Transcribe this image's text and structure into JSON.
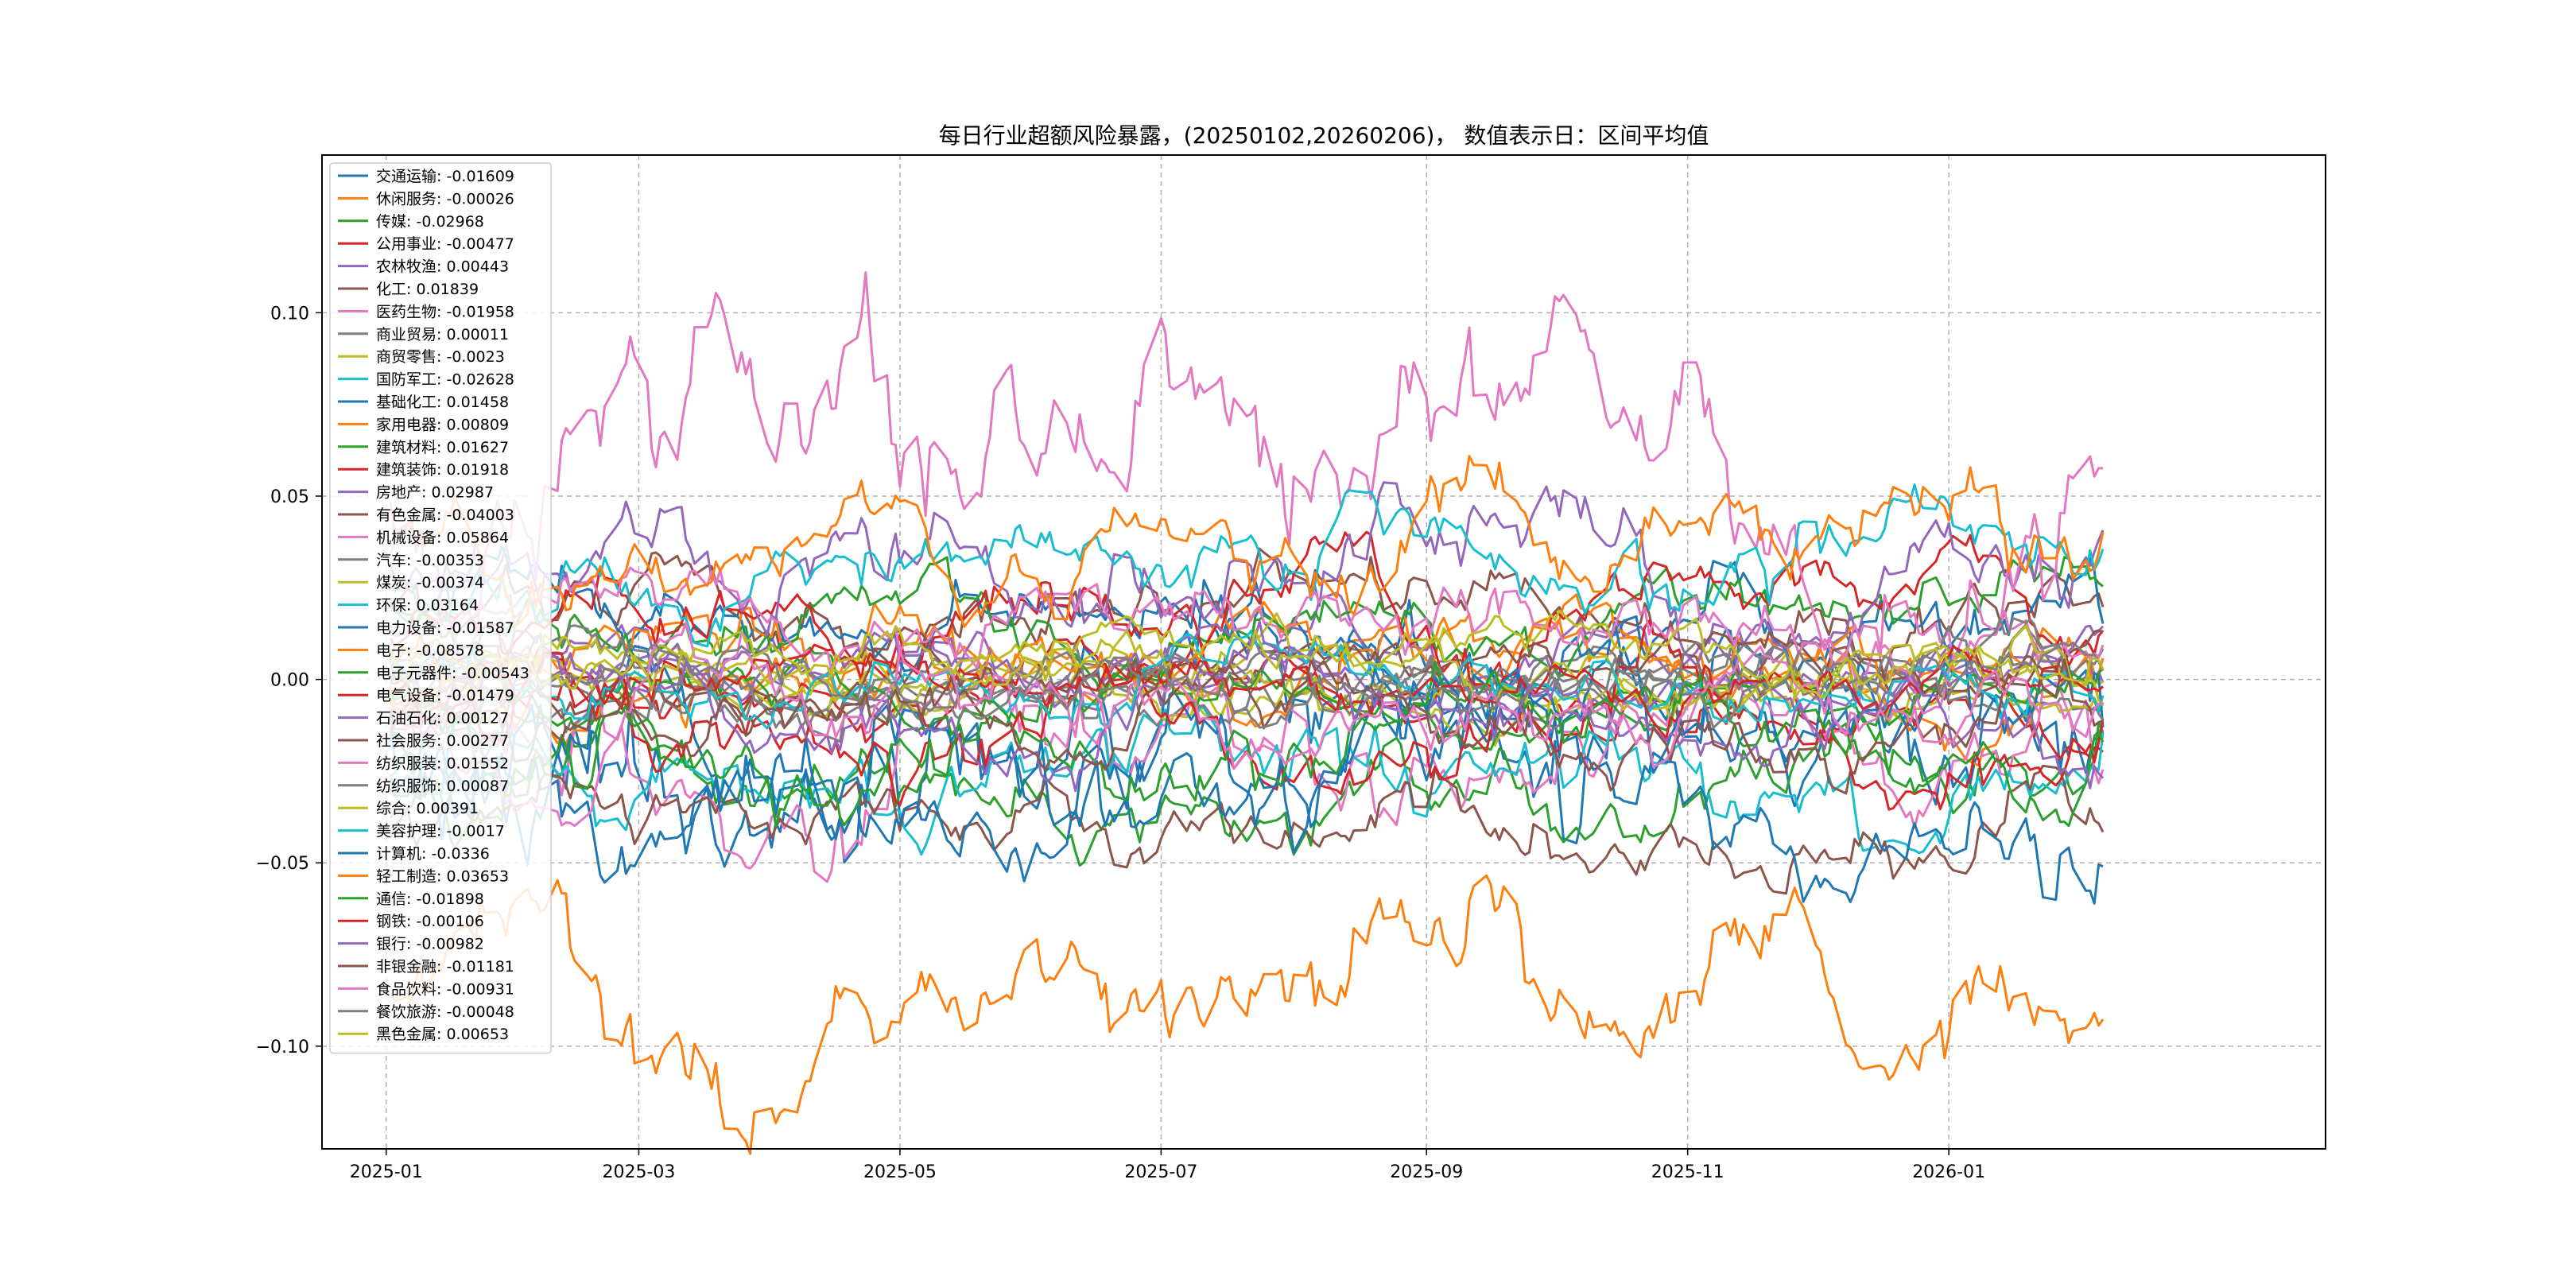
{
  "chart_data": {
    "type": "line",
    "title": "每日行业超额风险暴露，(20250102,20260206)， 数值表示日：区间平均值",
    "xlabel": "",
    "ylabel": "",
    "x_range": [
      "2024-12-17",
      "2026-03-30"
    ],
    "x_start": "2025-01-02",
    "x_end": "2026-02-06",
    "ylim": [
      -0.128,
      0.143
    ],
    "x_ticks": [
      "2025-01",
      "2025-03",
      "2025-05",
      "2025-07",
      "2025-09",
      "2025-11",
      "2026-01"
    ],
    "y_ticks": [
      {
        "value": 0.1,
        "label": "0.10"
      },
      {
        "value": 0.05,
        "label": "0.05"
      },
      {
        "value": 0.0,
        "label": "0.00"
      },
      {
        "value": -0.05,
        "label": "−0.05"
      },
      {
        "value": -0.1,
        "label": "−0.10"
      }
    ],
    "grid": true,
    "grid_style": "dashed",
    "legend_position": "upper-left",
    "series": [
      {
        "name": "交通运输",
        "mean_label": "-0.01609",
        "color": "#1f77b4",
        "mean": -0.01609,
        "vol": 0.018
      },
      {
        "name": "休闲服务",
        "mean_label": "-0.00026",
        "color": "#ff7f0e",
        "mean": -0.00026,
        "vol": 0.008
      },
      {
        "name": "传媒",
        "mean_label": "-0.02968",
        "color": "#2ca02c",
        "mean": -0.02968,
        "vol": 0.01
      },
      {
        "name": "公用事业",
        "mean_label": "-0.00477",
        "color": "#d62728",
        "mean": -0.00477,
        "vol": 0.007
      },
      {
        "name": "农林牧渔",
        "mean_label": "0.00443",
        "color": "#9467bd",
        "mean": 0.00443,
        "vol": 0.007
      },
      {
        "name": "化工",
        "mean_label": "0.01839",
        "color": "#8c564b",
        "mean": 0.01839,
        "vol": 0.008
      },
      {
        "name": "医药生物",
        "mean_label": "-0.01958",
        "color": "#e377c2",
        "mean": -0.01958,
        "vol": 0.012
      },
      {
        "name": "商业贸易",
        "mean_label": "0.00011",
        "color": "#7f7f7f",
        "mean": 0.00011,
        "vol": 0.005
      },
      {
        "name": "商贸零售",
        "mean_label": "-0.0023",
        "color": "#bcbd22",
        "mean": -0.0023,
        "vol": 0.006
      },
      {
        "name": "国防军工",
        "mean_label": "-0.02628",
        "color": "#17becf",
        "mean": -0.02628,
        "vol": 0.01
      },
      {
        "name": "基础化工",
        "mean_label": "0.01458",
        "color": "#1f77b4",
        "mean": 0.01458,
        "vol": 0.009
      },
      {
        "name": "家用电器",
        "mean_label": "0.00809",
        "color": "#ff7f0e",
        "mean": 0.00809,
        "vol": 0.008
      },
      {
        "name": "建筑材料",
        "mean_label": "0.01627",
        "color": "#2ca02c",
        "mean": 0.01627,
        "vol": 0.008
      },
      {
        "name": "建筑装饰",
        "mean_label": "0.01918",
        "color": "#d62728",
        "mean": 0.01918,
        "vol": 0.009
      },
      {
        "name": "房地产",
        "mean_label": "0.02987",
        "color": "#9467bd",
        "mean": 0.02987,
        "vol": 0.011
      },
      {
        "name": "有色金属",
        "mean_label": "-0.04003",
        "color": "#8c564b",
        "mean": -0.04003,
        "vol": 0.008
      },
      {
        "name": "机械设备",
        "mean_label": "0.05864",
        "color": "#e377c2",
        "mean": 0.05864,
        "vol": 0.02
      },
      {
        "name": "汽车",
        "mean_label": "-0.00353",
        "color": "#7f7f7f",
        "mean": -0.00353,
        "vol": 0.007
      },
      {
        "name": "煤炭",
        "mean_label": "-0.00374",
        "color": "#bcbd22",
        "mean": -0.00374,
        "vol": 0.006
      },
      {
        "name": "环保",
        "mean_label": "0.03164",
        "color": "#17becf",
        "mean": 0.03164,
        "vol": 0.009
      },
      {
        "name": "电力设备",
        "mean_label": "-0.01587",
        "color": "#1f77b4",
        "mean": -0.01587,
        "vol": 0.014
      },
      {
        "name": "电子",
        "mean_label": "-0.08578",
        "color": "#ff7f0e",
        "mean": -0.08578,
        "vol": 0.014
      },
      {
        "name": "电子元器件",
        "mean_label": "-0.00543",
        "color": "#2ca02c",
        "mean": -0.00543,
        "vol": 0.006
      },
      {
        "name": "电气设备",
        "mean_label": "-0.01479",
        "color": "#d62728",
        "mean": -0.01479,
        "vol": 0.009
      },
      {
        "name": "石油石化",
        "mean_label": "0.00127",
        "color": "#9467bd",
        "mean": 0.00127,
        "vol": 0.006
      },
      {
        "name": "社会服务",
        "mean_label": "0.00277",
        "color": "#8c564b",
        "mean": 0.00277,
        "vol": 0.006
      },
      {
        "name": "纺织服装",
        "mean_label": "0.01552",
        "color": "#e377c2",
        "mean": 0.01552,
        "vol": 0.008
      },
      {
        "name": "纺织服饰",
        "mean_label": "0.00087",
        "color": "#7f7f7f",
        "mean": 0.00087,
        "vol": 0.006
      },
      {
        "name": "综合",
        "mean_label": "0.00391",
        "color": "#bcbd22",
        "mean": 0.00391,
        "vol": 0.006
      },
      {
        "name": "美容护理",
        "mean_label": "-0.0017",
        "color": "#17becf",
        "mean": -0.0017,
        "vol": 0.006
      },
      {
        "name": "计算机",
        "mean_label": "-0.0336",
        "color": "#1f77b4",
        "mean": -0.0336,
        "vol": 0.012
      },
      {
        "name": "轻工制造",
        "mean_label": "0.03653",
        "color": "#ff7f0e",
        "mean": 0.03653,
        "vol": 0.01
      },
      {
        "name": "通信",
        "mean_label": "-0.01898",
        "color": "#2ca02c",
        "mean": -0.01898,
        "vol": 0.009
      },
      {
        "name": "钢铁",
        "mean_label": "-0.00106",
        "color": "#d62728",
        "mean": -0.00106,
        "vol": 0.006
      },
      {
        "name": "银行",
        "mean_label": "-0.00982",
        "color": "#9467bd",
        "mean": -0.00982,
        "vol": 0.008
      },
      {
        "name": "非银金融",
        "mean_label": "-0.01181",
        "color": "#8c564b",
        "mean": -0.01181,
        "vol": 0.008
      },
      {
        "name": "食品饮料",
        "mean_label": "-0.00931",
        "color": "#e377c2",
        "mean": -0.00931,
        "vol": 0.008
      },
      {
        "name": "餐饮旅游",
        "mean_label": "-0.00048",
        "color": "#7f7f7f",
        "mean": -0.00048,
        "vol": 0.005
      },
      {
        "name": "黑色金属",
        "mean_label": "0.00653",
        "color": "#bcbd22",
        "mean": 0.00653,
        "vol": 0.006
      }
    ]
  }
}
